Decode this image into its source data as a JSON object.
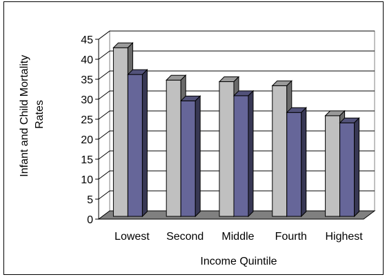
{
  "chart_data": {
    "type": "bar",
    "categories": [
      "Lowest",
      "Second",
      "Middle",
      "Fourth",
      "Highest"
    ],
    "series": [
      {
        "values": [
          42.2,
          34.1,
          33.7,
          32.7,
          25.2
        ],
        "color": "#c0c0c0"
      },
      {
        "values": [
          35.5,
          28.9,
          30.2,
          26.0,
          23.4
        ],
        "color": "#666699"
      }
    ],
    "title": "",
    "xlabel": "Income Quintile",
    "ylabel": "Infant and Child  Mortality Rates",
    "ylabel_lines": [
      "Infant and Child  Mortality",
      "Rates"
    ],
    "ylim": [
      0,
      45
    ],
    "yticks": [
      "0",
      "5",
      "10",
      "15",
      "20",
      "25",
      "30",
      "35",
      "40",
      "45"
    ],
    "grid": true,
    "legend": "none",
    "floor_color": "#808080",
    "style": "3d-bar"
  }
}
